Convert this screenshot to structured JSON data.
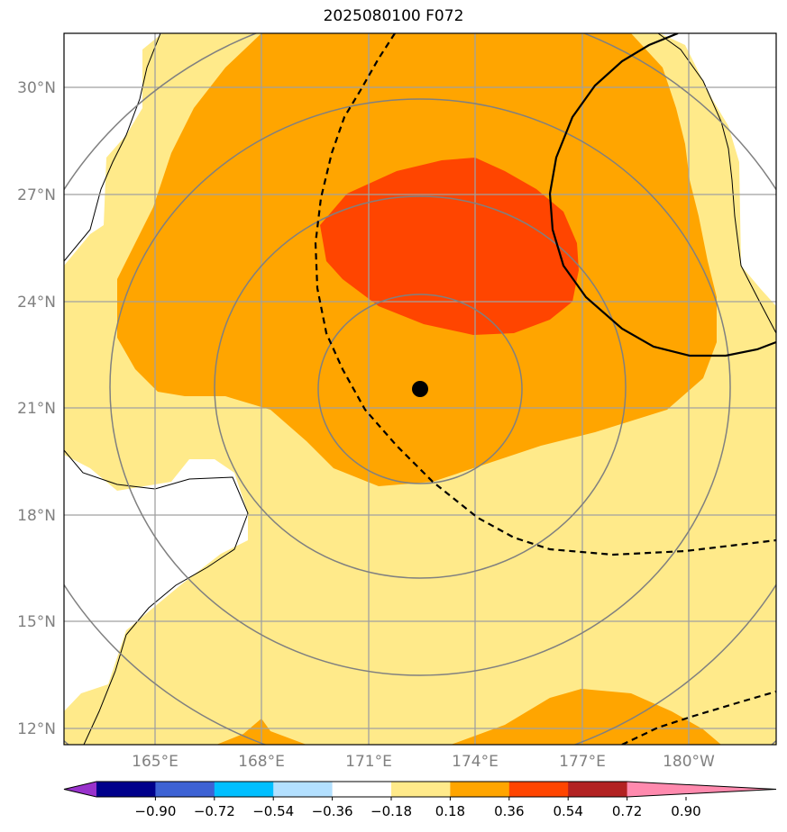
{
  "map": {
    "title": "2025080100 F072",
    "lat_labels": [
      "30°N",
      "27°N",
      "24°N",
      "21°N",
      "18°N",
      "15°N",
      "12°N"
    ],
    "lon_labels": [
      "165°E",
      "168°E",
      "171°E",
      "174°E",
      "177°E",
      "180°W"
    ],
    "center_marker": "storm-center-dot",
    "colors": {
      "level1": "#ffea8a",
      "level2": "#ffa500",
      "level3": "#ff4500",
      "grid": "#a0a0a0",
      "range_rings": "#808080"
    }
  },
  "colorbar": {
    "colors": [
      "#9932cc",
      "#00008b",
      "#3d62d4",
      "#00bfff",
      "#b3e0ff",
      "#ffffff",
      "#ffea8a",
      "#ffa500",
      "#ff4500",
      "#b22222",
      "#ff8aae"
    ],
    "labels": [
      "−0.90",
      "−0.72",
      "−0.54",
      "−0.36",
      "−0.18",
      "0.18",
      "0.36",
      "0.54",
      "0.72",
      "0.90"
    ]
  }
}
